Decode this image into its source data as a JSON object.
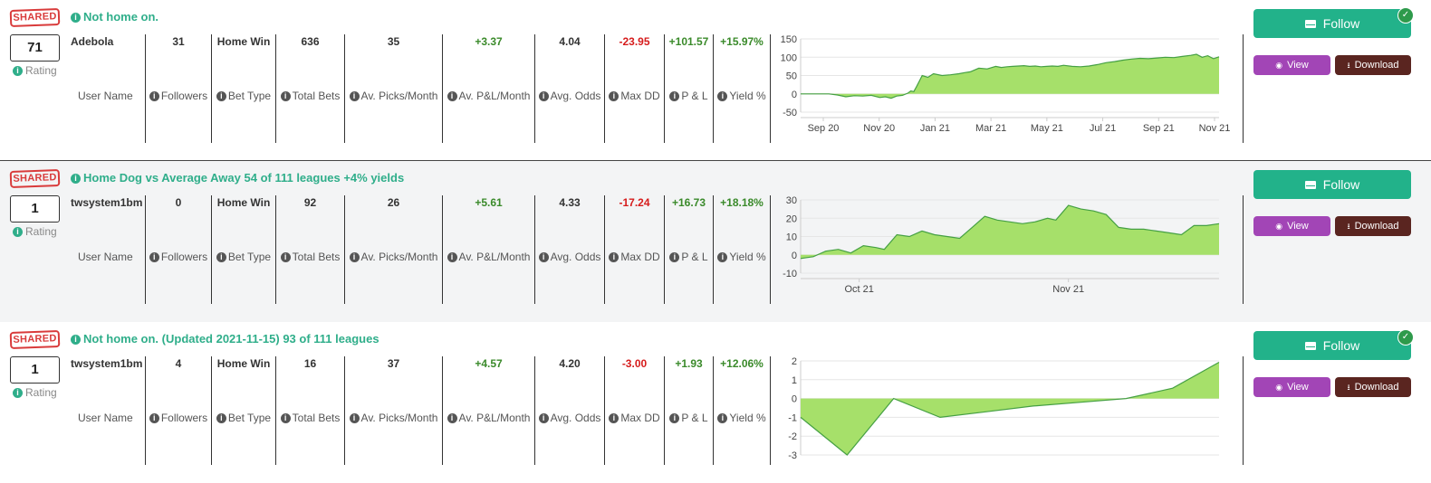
{
  "shared_badge": "SHARED",
  "labels": {
    "rating": "Rating",
    "user_name": "User Name",
    "followers": "Followers",
    "bet_type": "Bet Type",
    "total_bets": "Total Bets",
    "picks_month": "Av. Picks/Month",
    "pl_month": "Av. P&L/Month",
    "avg_odds": "Avg. Odds",
    "max_dd": "Max DD",
    "pl": "P & L",
    "yield": "Yield %"
  },
  "buttons": {
    "follow": "Follow",
    "view": "View",
    "download": "Download"
  },
  "icons": {
    "info": "info-circle-icon",
    "envelope": "envelope-icon",
    "eye": "eye-icon",
    "download": "download-icon",
    "check": "check-circle-icon"
  },
  "colors": {
    "accent": "#22b28a",
    "title": "#2fae8a",
    "view": "#a245b6",
    "download": "#5a2520",
    "negative": "#d61c1c",
    "positive": "#3a8a2a",
    "chart_fill": "#a6e06a",
    "chart_line": "#45a043"
  },
  "systems": [
    {
      "title": "Not home on.",
      "rating": "71",
      "user_name": "Adebola",
      "followers": "31",
      "bet_type": "Home Win",
      "total_bets": "636",
      "picks_month": "35",
      "pl_month": "+3.37",
      "avg_odds": "4.04",
      "max_dd": "-23.95",
      "pl": "+101.57",
      "yield": "+15.97%",
      "following": true,
      "chart_data": {
        "type": "area",
        "yticks": [
          "150",
          "100",
          "50",
          "0",
          "-50"
        ],
        "ylim": [
          -50,
          150
        ],
        "xticks": [
          "Sep 20",
          "Nov 20",
          "Jan 21",
          "Mar 21",
          "May 21",
          "Jul 21",
          "Sep 21",
          "Nov 21"
        ],
        "x": [
          0,
          0.6,
          0.8,
          1.0,
          1.3,
          1.6,
          1.9,
          2.2,
          2.5,
          2.8,
          3.0,
          3.2,
          3.4,
          3.6,
          3.8,
          3.9,
          4.0,
          4.1,
          4.2,
          4.3,
          4.5,
          4.7,
          5.0,
          5.3,
          5.6,
          5.8,
          6.0,
          6.3,
          6.6,
          6.9,
          7.1,
          7.3,
          7.5,
          7.7,
          7.9,
          8.1,
          8.3,
          8.5,
          8.7,
          8.9,
          9.1,
          9.3,
          9.6,
          9.9,
          10.2,
          10.5,
          10.8,
          11.1,
          11.4,
          11.7,
          12.0,
          12.3,
          12.6,
          12.9,
          13.2,
          13.5,
          13.8,
          14.0,
          14.2,
          14.4,
          14.6,
          14.8
        ],
        "y": [
          0,
          0,
          0,
          0,
          -3,
          -8,
          -5,
          -6,
          -4,
          -10,
          -8,
          -12,
          -6,
          -4,
          2,
          8,
          6,
          20,
          35,
          50,
          45,
          55,
          50,
          52,
          55,
          58,
          60,
          70,
          68,
          75,
          72,
          74,
          75,
          76,
          77,
          75,
          76,
          74,
          75,
          76,
          75,
          78,
          75,
          74,
          76,
          80,
          85,
          88,
          92,
          95,
          97,
          96,
          98,
          100,
          99,
          102,
          105,
          108,
          100,
          104,
          96,
          101
        ]
      }
    },
    {
      "title": "Home Dog vs Average Away 54 of 111 leagues +4% yields",
      "rating": "1",
      "user_name": "twsystem1bm",
      "followers": "0",
      "bet_type": "Home Win",
      "total_bets": "92",
      "picks_month": "26",
      "pl_month": "+5.61",
      "avg_odds": "4.33",
      "max_dd": "-17.24",
      "pl": "+16.73",
      "yield": "+18.18%",
      "following": false,
      "chart_data": {
        "type": "area",
        "yticks": [
          "30",
          "20",
          "10",
          "0",
          "-10"
        ],
        "ylim": [
          -10,
          30
        ],
        "xticks": [
          "Oct 21",
          "Nov 21"
        ],
        "x": [
          0,
          0.3,
          0.6,
          0.9,
          1.2,
          1.5,
          1.8,
          2.0,
          2.3,
          2.6,
          2.9,
          3.2,
          3.5,
          3.8,
          4.1,
          4.4,
          4.7,
          5.0,
          5.3,
          5.6,
          5.9,
          6.1,
          6.4,
          6.7,
          7.0,
          7.3,
          7.6,
          7.9,
          8.2,
          8.5,
          8.8,
          9.1,
          9.4,
          9.7,
          10.0
        ],
        "y": [
          -2,
          -1,
          2,
          3,
          1,
          5,
          4,
          3,
          11,
          10,
          13,
          11,
          10,
          9,
          15,
          21,
          19,
          18,
          17,
          18,
          20,
          19,
          27,
          25,
          24,
          22,
          15,
          14,
          14,
          13,
          12,
          11,
          16,
          16,
          17
        ]
      }
    },
    {
      "title": "Not home on. (Updated 2021-11-15) 93 of 111 leagues",
      "rating": "1",
      "user_name": "twsystem1bm",
      "followers": "4",
      "bet_type": "Home Win",
      "total_bets": "16",
      "picks_month": "37",
      "pl_month": "+4.57",
      "avg_odds": "4.20",
      "max_dd": "-3.00",
      "pl": "+1.93",
      "yield": "+12.06%",
      "following": true,
      "chart_data": {
        "type": "area",
        "yticks": [
          "2",
          "1",
          "0",
          "-1",
          "-2",
          "-3"
        ],
        "ylim": [
          -3,
          2
        ],
        "xticks": [],
        "x": [
          0,
          1,
          2,
          3,
          4,
          5,
          6,
          7,
          8,
          9
        ],
        "y": [
          -1,
          -3,
          0,
          -1,
          -0.7,
          -0.4,
          -0.2,
          0,
          0.55,
          1.93
        ]
      }
    }
  ]
}
